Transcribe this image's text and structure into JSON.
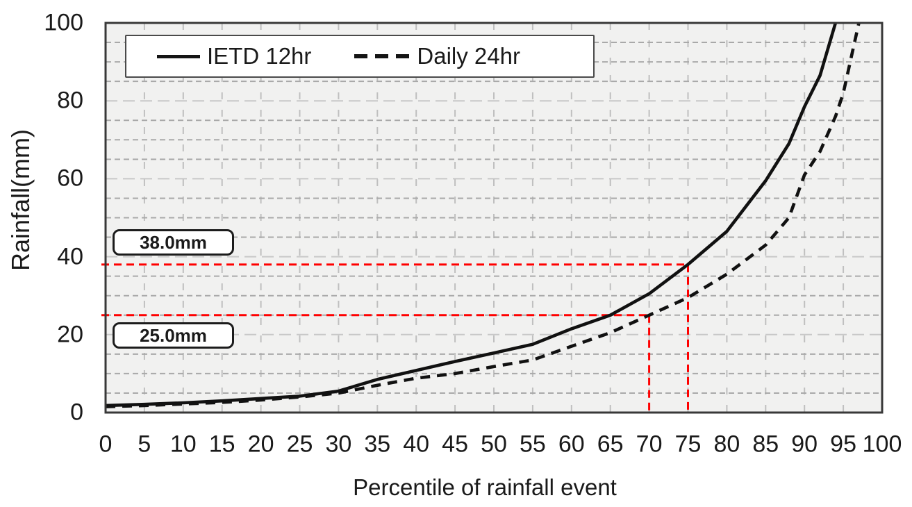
{
  "chart_data": {
    "type": "line",
    "title": "",
    "xlabel": "Percentile of rainfall event",
    "ylabel": "Rainfall(mm)",
    "xlim": [
      0,
      100
    ],
    "ylim": [
      0,
      100
    ],
    "x_ticks": [
      0,
      5,
      10,
      15,
      20,
      25,
      30,
      35,
      40,
      45,
      50,
      55,
      60,
      65,
      70,
      75,
      80,
      85,
      90,
      95,
      100
    ],
    "y_ticks": [
      0,
      20,
      40,
      60,
      80,
      100
    ],
    "y_minor_step": 5,
    "y_major_step": 20,
    "grid": true,
    "legend_position": "top-left",
    "series": [
      {
        "name": "IETD 12hr",
        "style": "solid",
        "color": "#111111",
        "points": [
          [
            0,
            1.8
          ],
          [
            5,
            2.1
          ],
          [
            10,
            2.5
          ],
          [
            15,
            3.0
          ],
          [
            20,
            3.6
          ],
          [
            25,
            4.2
          ],
          [
            30,
            5.5
          ],
          [
            35,
            8.5
          ],
          [
            40,
            10.8
          ],
          [
            45,
            13.1
          ],
          [
            50,
            15.3
          ],
          [
            55,
            17.5
          ],
          [
            60,
            21.5
          ],
          [
            65,
            25.0
          ],
          [
            70,
            30.5
          ],
          [
            75,
            38.0
          ],
          [
            80,
            46.5
          ],
          [
            85,
            59.5
          ],
          [
            88,
            69.0
          ],
          [
            90,
            78.5
          ],
          [
            92,
            86.5
          ],
          [
            94,
            100.0
          ]
        ]
      },
      {
        "name": "Daily 24hr",
        "style": "dashed",
        "color": "#111111",
        "points": [
          [
            0,
            1.5
          ],
          [
            5,
            1.8
          ],
          [
            10,
            2.2
          ],
          [
            15,
            2.6
          ],
          [
            20,
            3.2
          ],
          [
            25,
            4.0
          ],
          [
            30,
            5.0
          ],
          [
            35,
            7.0
          ],
          [
            40,
            8.8
          ],
          [
            45,
            10.0
          ],
          [
            50,
            11.8
          ],
          [
            55,
            13.5
          ],
          [
            60,
            17.0
          ],
          [
            65,
            20.5
          ],
          [
            70,
            25.0
          ],
          [
            75,
            29.5
          ],
          [
            80,
            35.5
          ],
          [
            85,
            43.0
          ],
          [
            88,
            50.0
          ],
          [
            90,
            61.0
          ],
          [
            92,
            67.0
          ],
          [
            94,
            76.0
          ],
          [
            95,
            82.0
          ],
          [
            97,
            100.0
          ]
        ]
      }
    ],
    "markers": [
      {
        "series": "IETD 12hr",
        "x": 75,
        "y": 38.0,
        "label": "38.0mm"
      },
      {
        "series": "Daily 24hr",
        "x": 70,
        "y": 25.0,
        "label": "25.0mm"
      }
    ],
    "colors": {
      "annotation": "#ff0000",
      "plot_bg": "#f1f1f0",
      "border": "#383838",
      "grid_minor": "#a9a9a9",
      "grid_major": "#c8c8c8",
      "grid_vertical": "#bfbfbf",
      "text": "#1a1a1a"
    }
  }
}
